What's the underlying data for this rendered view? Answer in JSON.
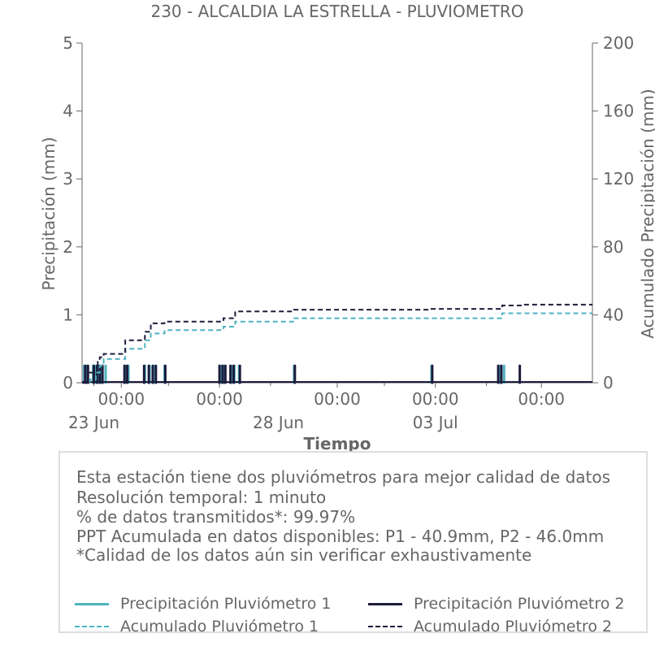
{
  "chart_data": {
    "type": "bar",
    "title": "230 - ALCALDIA LA ESTRELLA - PLUVIOMETRO",
    "xlabel": "Tiempo",
    "ylabel_left": "Precipitación (mm)",
    "ylabel_right": "Acumulado Precipitación (mm)",
    "ylim_left": [
      0,
      5
    ],
    "ylim_right": [
      0,
      200
    ],
    "yticks_left": [
      "0",
      "1",
      "2",
      "3",
      "4",
      "5"
    ],
    "yticks_right": [
      "0",
      "40",
      "80",
      "120",
      "160",
      "200"
    ],
    "xlim_days": [
      0,
      13
    ],
    "xticks_time": [
      {
        "day": 1.0,
        "label": "00:00"
      },
      {
        "day": 3.5,
        "label": "00:00"
      },
      {
        "day": 6.5,
        "label": "00:00"
      },
      {
        "day": 9.0,
        "label": "00:00"
      },
      {
        "day": 11.7,
        "label": "00:00"
      }
    ],
    "xticks_date": [
      {
        "day": 0.3,
        "label": "23 Jun"
      },
      {
        "day": 5.0,
        "label": "28 Jun"
      },
      {
        "day": 9.0,
        "label": "03 Jul"
      }
    ],
    "minor_tick_days": [
      0.3,
      2.2,
      4.8,
      7.7,
      10.3
    ],
    "colors": {
      "p1": "#4fb3bf",
      "p2": "#1c1c3c",
      "axis": "#666666"
    },
    "series": [
      {
        "name": "Precipitación Pluviómetro 1",
        "style": "bar",
        "points": [
          [
            0.05,
            0.25
          ],
          [
            0.12,
            0.25
          ],
          [
            0.28,
            0.25
          ],
          [
            0.35,
            0.25
          ],
          [
            0.42,
            0.25
          ],
          [
            0.5,
            0.25
          ],
          [
            0.6,
            0.25
          ],
          [
            1.1,
            0.25
          ],
          [
            1.18,
            0.25
          ],
          [
            1.6,
            0.25
          ],
          [
            1.72,
            0.25
          ],
          [
            1.85,
            0.25
          ],
          [
            2.1,
            0.25
          ],
          [
            3.55,
            0.25
          ],
          [
            3.62,
            0.25
          ],
          [
            3.8,
            0.25
          ],
          [
            3.88,
            0.25
          ],
          [
            4.0,
            0.25
          ],
          [
            5.4,
            0.25
          ],
          [
            8.9,
            0.25
          ],
          [
            10.65,
            0.25
          ],
          [
            10.75,
            0.25
          ]
        ]
      },
      {
        "name": "Precipitación Pluviómetro 2",
        "style": "bar",
        "points": [
          [
            0.08,
            0.25
          ],
          [
            0.15,
            0.25
          ],
          [
            0.3,
            0.25
          ],
          [
            0.38,
            0.25
          ],
          [
            0.45,
            0.25
          ],
          [
            0.52,
            0.25
          ],
          [
            1.08,
            0.25
          ],
          [
            1.15,
            0.25
          ],
          [
            1.58,
            0.25
          ],
          [
            1.7,
            0.25
          ],
          [
            1.8,
            0.25
          ],
          [
            1.88,
            0.25
          ],
          [
            2.12,
            0.25
          ],
          [
            3.5,
            0.25
          ],
          [
            3.58,
            0.25
          ],
          [
            3.65,
            0.25
          ],
          [
            3.78,
            0.25
          ],
          [
            3.86,
            0.25
          ],
          [
            4.02,
            0.25
          ],
          [
            5.42,
            0.25
          ],
          [
            8.92,
            0.25
          ],
          [
            10.6,
            0.25
          ],
          [
            10.68,
            0.25
          ],
          [
            11.15,
            0.25
          ]
        ]
      },
      {
        "name": "Acumulado Pluviómetro 1",
        "style": "dashed-step",
        "axis": "right",
        "points": [
          [
            0.0,
            0
          ],
          [
            0.2,
            2
          ],
          [
            0.35,
            6
          ],
          [
            0.45,
            10
          ],
          [
            0.55,
            14
          ],
          [
            1.1,
            20
          ],
          [
            1.6,
            25
          ],
          [
            1.75,
            29
          ],
          [
            2.1,
            31
          ],
          [
            3.6,
            33
          ],
          [
            3.9,
            36
          ],
          [
            5.4,
            38
          ],
          [
            10.7,
            40.9
          ],
          [
            13.0,
            40.9
          ]
        ]
      },
      {
        "name": "Acumulado Pluviómetro 2",
        "style": "dashed-step",
        "axis": "right",
        "points": [
          [
            0.0,
            0
          ],
          [
            0.15,
            6
          ],
          [
            0.3,
            10
          ],
          [
            0.4,
            13
          ],
          [
            0.45,
            15
          ],
          [
            0.55,
            17
          ],
          [
            1.1,
            25
          ],
          [
            1.6,
            30
          ],
          [
            1.75,
            35
          ],
          [
            2.1,
            36
          ],
          [
            3.6,
            38
          ],
          [
            3.9,
            42
          ],
          [
            5.4,
            43
          ],
          [
            8.9,
            43.5
          ],
          [
            10.7,
            45.5
          ],
          [
            11.2,
            46.0
          ],
          [
            13.0,
            46.0
          ]
        ]
      }
    ],
    "legend_position": "bottom"
  },
  "info": {
    "lines": [
      "Esta estación tiene dos pluviómetros para mejor calidad de datos",
      "Resolución temporal: 1 minuto",
      "% de datos transmitidos*: 99.97%",
      "PPT Acumulada en datos disponibles: P1 - 40.9mm, P2 - 46.0mm",
      "*Calidad de los datos aún sin verificar exhaustivamente"
    ]
  },
  "legend": {
    "p1_bar": "Precipitación Pluviómetro 1",
    "p2_bar": "Precipitación Pluviómetro 2",
    "p1_acc": "Acumulado Pluviómetro 1",
    "p2_acc": "Acumulado Pluviómetro 2"
  }
}
